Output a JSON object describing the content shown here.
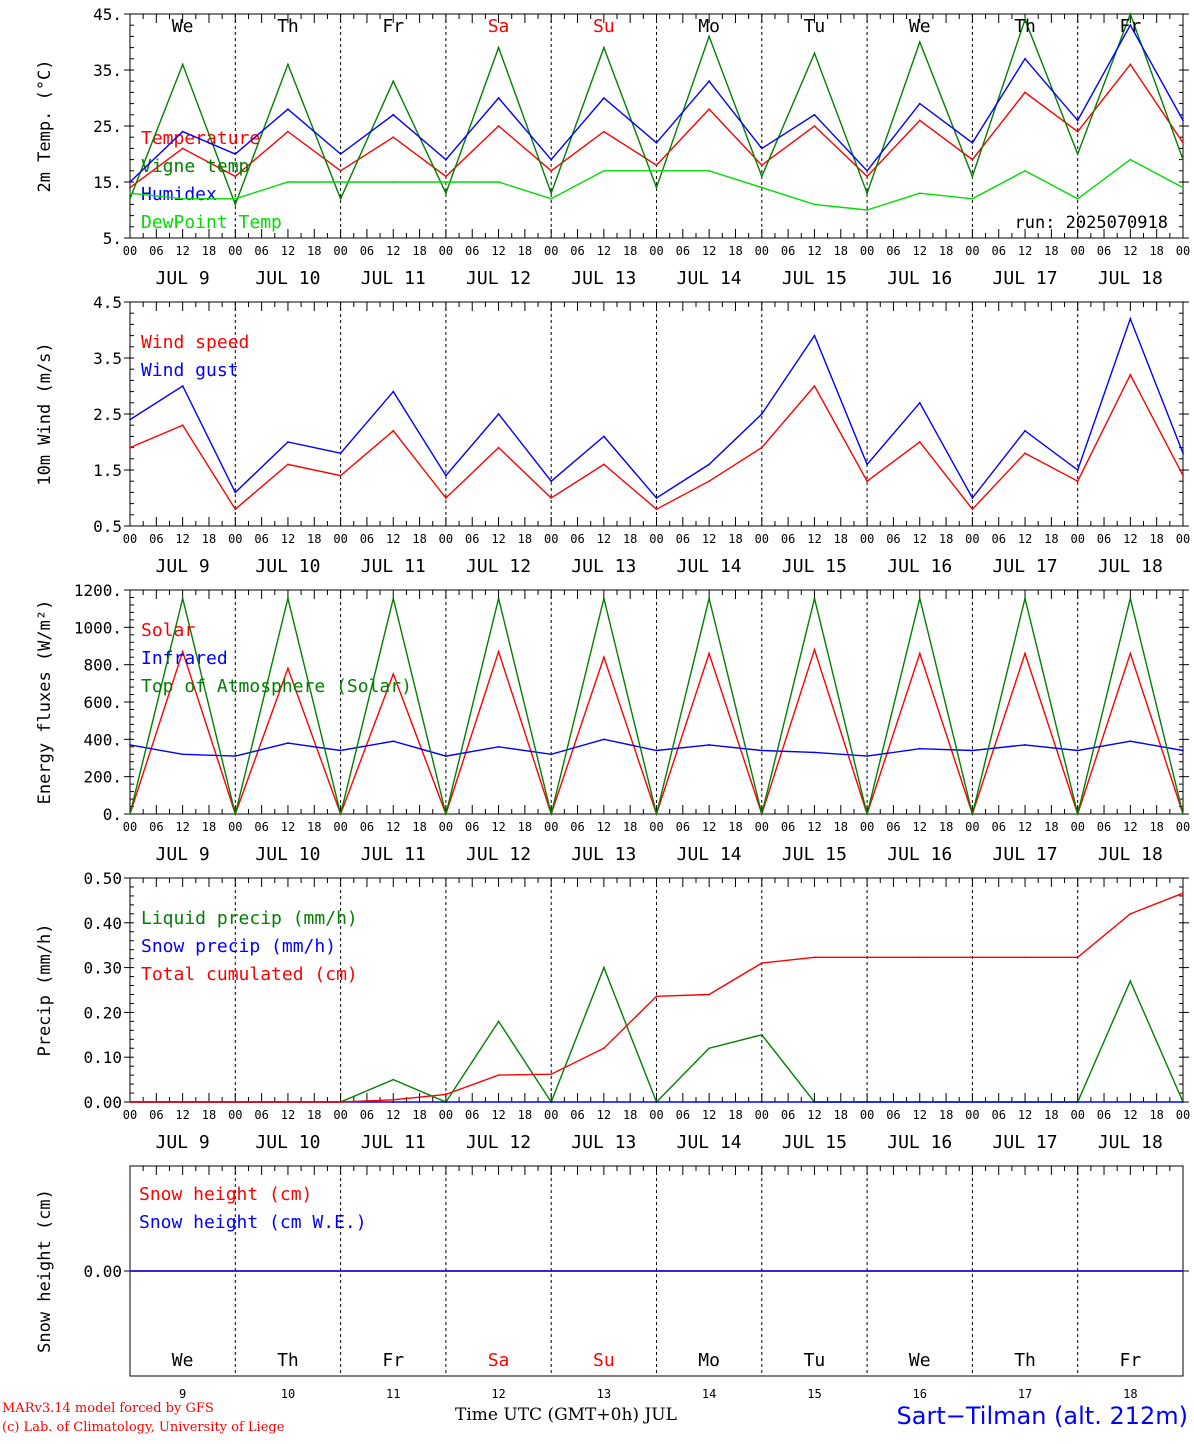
{
  "chart_data": [
    {
      "type": "line",
      "ylabel": "2m Temp. (°C)",
      "ylim": [
        5,
        45
      ],
      "yticks": [
        "5.",
        "15.",
        "25.",
        "35.",
        "45."
      ],
      "run_label": "run: 2025070918",
      "x_hours": [
        0,
        12,
        24,
        36,
        48,
        60,
        72,
        84,
        96,
        108,
        120,
        132,
        144,
        156,
        168,
        180,
        192,
        204,
        216,
        228,
        240
      ],
      "series": [
        {
          "name": "Temperature",
          "color": "#ff0000",
          "values": [
            14,
            21,
            16,
            24,
            17,
            23,
            16,
            25,
            17,
            24,
            18,
            28,
            18,
            25,
            16,
            26,
            19,
            31,
            24,
            36,
            22
          ]
        },
        {
          "name": "Vigne temp",
          "color": "#008000",
          "values": [
            12,
            36,
            11,
            36,
            12,
            33,
            13,
            39,
            13,
            39,
            14,
            41,
            16,
            38,
            13,
            40,
            16,
            44,
            20,
            45,
            19
          ]
        },
        {
          "name": "Humidex",
          "color": "#0000ff",
          "values": [
            15,
            24,
            20,
            28,
            20,
            27,
            19,
            30,
            19,
            30,
            22,
            33,
            21,
            27,
            17,
            29,
            22,
            37,
            26,
            43,
            26
          ]
        },
        {
          "name": "DewPoint Temp",
          "color": "#00dd00",
          "values": [
            13,
            12,
            12,
            15,
            15,
            15,
            15,
            15,
            12,
            17,
            17,
            17,
            14,
            11,
            10,
            13,
            12,
            17,
            12,
            19,
            14
          ]
        }
      ]
    },
    {
      "type": "line",
      "ylabel": "10m Wind (m/s)",
      "ylim": [
        0.5,
        4.5
      ],
      "yticks": [
        "0.5",
        "1.5",
        "2.5",
        "3.5",
        "4.5"
      ],
      "x_hours": [
        0,
        12,
        24,
        36,
        48,
        60,
        72,
        84,
        96,
        108,
        120,
        132,
        144,
        156,
        168,
        180,
        192,
        204,
        216,
        228,
        240
      ],
      "series": [
        {
          "name": "Wind speed",
          "color": "#ff0000",
          "values": [
            1.9,
            2.3,
            0.8,
            1.6,
            1.4,
            2.2,
            1.0,
            1.9,
            1.0,
            1.6,
            0.8,
            1.3,
            1.9,
            3.0,
            1.3,
            2.0,
            0.8,
            1.8,
            1.3,
            3.2,
            1.4
          ]
        },
        {
          "name": "Wind gust",
          "color": "#0000ff",
          "values": [
            2.4,
            3.0,
            1.1,
            2.0,
            1.8,
            2.9,
            1.4,
            2.5,
            1.3,
            2.1,
            1.0,
            1.6,
            2.5,
            3.9,
            1.6,
            2.7,
            1.0,
            2.2,
            1.5,
            4.2,
            1.8
          ]
        }
      ]
    },
    {
      "type": "line",
      "ylabel": "Energy fluxes (W/m²)",
      "ylim": [
        0,
        1200
      ],
      "yticks": [
        "0.",
        "200.",
        "400.",
        "600.",
        "800.",
        "1000.",
        "1200."
      ],
      "x_hours": [
        0,
        12,
        24,
        36,
        48,
        60,
        72,
        84,
        96,
        108,
        120,
        132,
        144,
        156,
        168,
        180,
        192,
        204,
        216,
        228,
        240
      ],
      "series": [
        {
          "name": "Solar",
          "color": "#ff0000",
          "values": [
            0,
            870,
            0,
            780,
            0,
            750,
            0,
            870,
            0,
            840,
            0,
            860,
            0,
            880,
            0,
            860,
            0,
            860,
            0,
            860,
            0
          ]
        },
        {
          "name": "Infrared",
          "color": "#0000ff",
          "values": [
            370,
            320,
            310,
            380,
            340,
            390,
            310,
            360,
            320,
            400,
            340,
            370,
            340,
            330,
            310,
            350,
            340,
            370,
            340,
            390,
            340
          ]
        },
        {
          "name": "Top of Atmosphere (Solar)",
          "color": "#008000",
          "values": [
            0,
            1155,
            0,
            1155,
            0,
            1155,
            0,
            1155,
            0,
            1155,
            0,
            1155,
            0,
            1155,
            0,
            1155,
            0,
            1155,
            0,
            1155,
            0
          ]
        }
      ]
    },
    {
      "type": "line",
      "ylabel": "Precip (mm/h)",
      "ylim": [
        0,
        0.5
      ],
      "yticks": [
        "0.00",
        "0.10",
        "0.20",
        "0.30",
        "0.40",
        "0.50"
      ],
      "x_hours": [
        0,
        12,
        24,
        36,
        48,
        60,
        72,
        84,
        96,
        108,
        120,
        132,
        144,
        156,
        168,
        180,
        192,
        204,
        216,
        228,
        240
      ],
      "series": [
        {
          "name": "Liquid precip (mm/h)",
          "color": "#008000",
          "values": [
            0,
            0,
            0,
            0,
            0,
            0.05,
            0,
            0.18,
            0,
            0.3,
            0,
            0.12,
            0.15,
            0,
            0,
            0,
            0,
            0,
            0,
            0.27,
            0
          ]
        },
        {
          "name": "Snow precip (mm/h)",
          "color": "#0000ff",
          "values": [
            0,
            0,
            0,
            0,
            0,
            0,
            0,
            0,
            0,
            0,
            0,
            0,
            0,
            0,
            0,
            0,
            0,
            0,
            0,
            0,
            0
          ]
        },
        {
          "name": "Total cumulated (cm)",
          "color": "#ff0000",
          "values": [
            0,
            0,
            0,
            0,
            0,
            0.005,
            0.017,
            0.06,
            0.062,
            0.12,
            0.236,
            0.24,
            0.31,
            0.323,
            0.323,
            0.323,
            0.323,
            0.323,
            0.323,
            0.42,
            0.466
          ]
        }
      ]
    },
    {
      "type": "line",
      "ylabel": "Snow height (cm)",
      "ylim": [
        -1,
        1
      ],
      "yticks": [
        "0.00"
      ],
      "x_hours": [
        0,
        240
      ],
      "series": [
        {
          "name": "Snow height (cm)",
          "color": "#ff0000",
          "values": [
            0,
            0
          ]
        },
        {
          "name": "Snow height (cm W.E.)",
          "color": "#0000ff",
          "values": [
            0,
            0
          ]
        }
      ]
    }
  ],
  "days": [
    {
      "wd": "We",
      "date": "JUL  9",
      "num": "9",
      "weekend": false
    },
    {
      "wd": "Th",
      "date": "JUL 10",
      "num": "10",
      "weekend": false
    },
    {
      "wd": "Fr",
      "date": "JUL 11",
      "num": "11",
      "weekend": false
    },
    {
      "wd": "Sa",
      "date": "JUL 12",
      "num": "12",
      "weekend": true
    },
    {
      "wd": "Su",
      "date": "JUL 13",
      "num": "13",
      "weekend": true
    },
    {
      "wd": "Mo",
      "date": "JUL 14",
      "num": "14",
      "weekend": false
    },
    {
      "wd": "Tu",
      "date": "JUL 15",
      "num": "15",
      "weekend": false
    },
    {
      "wd": "We",
      "date": "JUL 16",
      "num": "16",
      "weekend": false
    },
    {
      "wd": "Th",
      "date": "JUL 17",
      "num": "17",
      "weekend": false
    },
    {
      "wd": "Fr",
      "date": "JUL 18",
      "num": "18",
      "weekend": false
    }
  ],
  "hour_ticks": [
    "00",
    "06",
    "12",
    "18"
  ],
  "footer": {
    "model": "MARv3.14 model forced by GFS",
    "credit": "(c) Lab. of Climatology, University of Liege",
    "xaxis": "Time UTC (GMT+0h) JUL",
    "station": "Sart−Tilman (alt. 212m)"
  }
}
